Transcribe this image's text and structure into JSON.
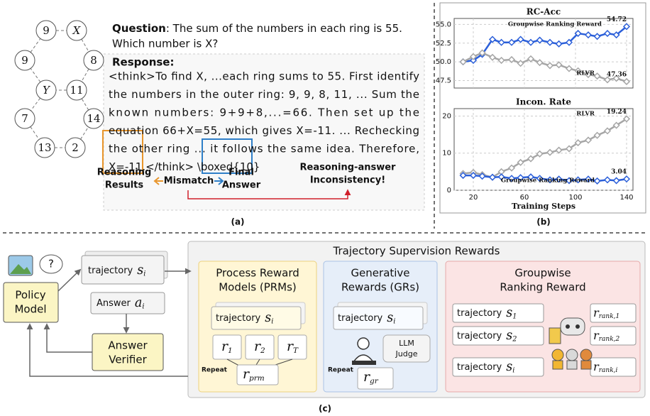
{
  "panel_a": {
    "ring_numbers": [
      "9",
      "X",
      "9",
      "8",
      "Y",
      "11",
      "7",
      "14",
      "13",
      "2"
    ],
    "question_label": "Question",
    "question_lines": [
      ": The sum of the numbers in each ring is 55.",
      "Which number is X?"
    ],
    "response_label": "Response:",
    "response_lines": [
      "<think>To find X, ...each ring sums to 55. First identify",
      "the numbers in the outer ring: 9, 9, 8, 11, ... Sum the",
      "known numbers: 9+9+8,...=66. Then set up the",
      "equation 66+X=55, which gives X=-11. ... Rechecking",
      "the other ring ... it follows the same idea. Therefore,",
      "X=-11.</think> \\boxed{10}"
    ],
    "reasoning_results": [
      "Reasoning",
      "Results"
    ],
    "mismatch": "Mismatch",
    "final_answer": [
      "Final",
      "Answer"
    ],
    "inconsistency": [
      "Reasoning-answer",
      "Inconsistency!"
    ],
    "caption": "(a)"
  },
  "chart_data": [
    {
      "type": "line",
      "title": "RC-Acc",
      "x": [
        12,
        20,
        27,
        35,
        42,
        50,
        57,
        65,
        72,
        80,
        87,
        95,
        102,
        110,
        117,
        125,
        132,
        140
      ],
      "xlim": [
        5,
        145
      ],
      "ylim": [
        46.5,
        55.8
      ],
      "yticks": [
        47.5,
        {
          "value": 50.0,
          "label": "50.0"
        },
        52.5,
        {
          "value": 55.0,
          "label": "55.0"
        }
      ],
      "grid": true,
      "series": [
        {
          "name": "Groupwise Ranking Reward",
          "color": "#2b5fd9",
          "values": [
            50.0,
            50.2,
            51.0,
            53.0,
            52.6,
            52.6,
            53.0,
            52.6,
            52.9,
            52.6,
            52.4,
            52.6,
            53.8,
            53.6,
            53.4,
            53.8,
            53.6,
            54.72
          ]
        },
        {
          "name": "RLVR",
          "color": "#a6a6a6",
          "values": [
            50.0,
            50.7,
            51.2,
            50.6,
            50.2,
            50.3,
            49.8,
            50.4,
            49.9,
            49.5,
            49.6,
            49.1,
            48.8,
            48.3,
            48.1,
            47.6,
            47.8,
            47.36
          ]
        }
      ]
    },
    {
      "type": "line",
      "title": "Incon. Rate",
      "x_label": "Training Steps",
      "x": [
        12,
        20,
        27,
        35,
        42,
        50,
        57,
        65,
        72,
        80,
        87,
        95,
        102,
        110,
        117,
        125,
        132,
        140
      ],
      "xlim": [
        5,
        145
      ],
      "xticks": [
        20,
        60,
        100,
        140
      ],
      "ylim": [
        0,
        22
      ],
      "yticks": [
        0,
        10,
        20
      ],
      "grid": true,
      "series": [
        {
          "name": "RLVR",
          "color": "#a6a6a6",
          "values": [
            4.5,
            4.8,
            4.2,
            3.5,
            5.0,
            6.0,
            7.5,
            8.5,
            9.8,
            10.2,
            10.8,
            11.2,
            12.8,
            13.5,
            14.8,
            16.0,
            17.5,
            19.24
          ]
        },
        {
          "name": "Groupwise Ranking Reward",
          "color": "#2b5fd9",
          "values": [
            4.0,
            4.0,
            3.8,
            3.5,
            3.6,
            3.2,
            3.4,
            3.6,
            3.2,
            2.8,
            3.0,
            2.6,
            2.8,
            3.0,
            2.5,
            2.8,
            2.6,
            3.04
          ]
        }
      ]
    }
  ],
  "panel_b_caption": "(b)",
  "panel_c": {
    "title": "Trajectory Supervision Rewards",
    "question_mark": "?",
    "policy_model": [
      "Policy",
      "Model"
    ],
    "trajectory": {
      "text": "trajectory",
      "symbol": "s",
      "sub": "i"
    },
    "answer": {
      "text": "Answer",
      "symbol": "a",
      "sub": "i"
    },
    "verifier": [
      "Answer",
      "Verifier"
    ],
    "prm": {
      "title": [
        "Process Reward",
        "Models (PRMs)"
      ],
      "trajectory": {
        "text": "trajectory",
        "symbol": "s",
        "sub": "i"
      },
      "rewards": [
        {
          "symbol": "r",
          "sub": "1"
        },
        {
          "symbol": "r",
          "sub": "2"
        },
        {
          "symbol": "r",
          "sub": "T"
        }
      ],
      "repeat": "Repeat",
      "output": {
        "symbol": "r",
        "sub": "prm"
      }
    },
    "gr": {
      "title": [
        "Generative",
        "Rewards (GRs)"
      ],
      "trajectory": {
        "text": "trajectory",
        "symbol": "s",
        "sub": "i"
      },
      "judge": [
        "LLM",
        "Judge"
      ],
      "repeat": "Repeat",
      "output": {
        "symbol": "r",
        "sub": "gr"
      }
    },
    "ranking": {
      "title": [
        "Groupwise",
        "Ranking Reward"
      ],
      "trajectories": [
        {
          "text": "trajectory",
          "symbol": "s",
          "sub": "1"
        },
        {
          "text": "trajectory",
          "symbol": "s",
          "sub": "2"
        },
        {
          "text": "trajectory",
          "symbol": "s",
          "sub": "i"
        }
      ],
      "rewards": [
        {
          "symbol": "r",
          "sub": "rank,1"
        },
        {
          "symbol": "r",
          "sub": "rank,2"
        },
        {
          "symbol": "r",
          "sub": "rank,i"
        }
      ]
    },
    "caption": "(c)"
  }
}
